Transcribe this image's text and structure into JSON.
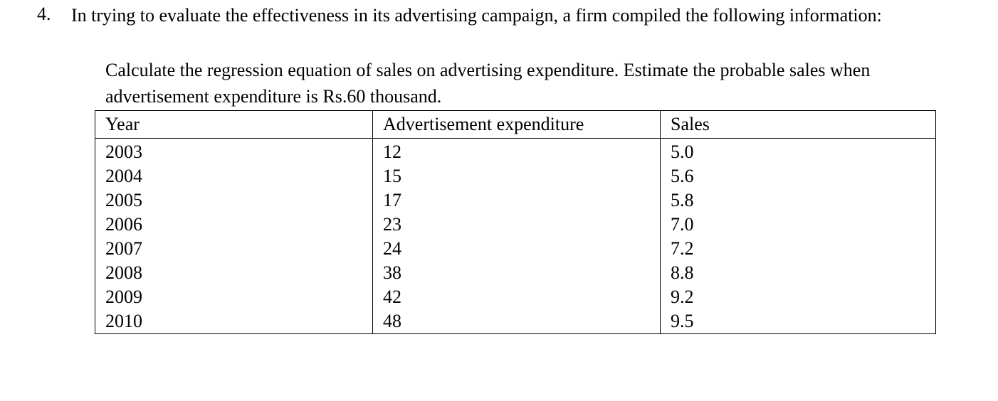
{
  "question": {
    "number": "4.",
    "text": "In trying to evaluate the effectiveness in its advertising campaign, a firm compiled the following information:",
    "instruction": "Calculate the regression equation of sales on advertising expenditure. Estimate the probable sales when advertisement expenditure is Rs.60 thousand."
  },
  "table": {
    "headers": [
      "Year",
      "Advertisement expenditure",
      "Sales"
    ],
    "rows": [
      [
        "2003",
        "12",
        "5.0"
      ],
      [
        "2004",
        "15",
        "5.6"
      ],
      [
        "2005",
        "17",
        "5.8"
      ],
      [
        "2006",
        "23",
        "7.0"
      ],
      [
        "2007",
        "24",
        "7.2"
      ],
      [
        "2008",
        "38",
        "8.8"
      ],
      [
        "2009",
        "42",
        "9.2"
      ],
      [
        "2010",
        "48",
        "9.5"
      ]
    ]
  }
}
